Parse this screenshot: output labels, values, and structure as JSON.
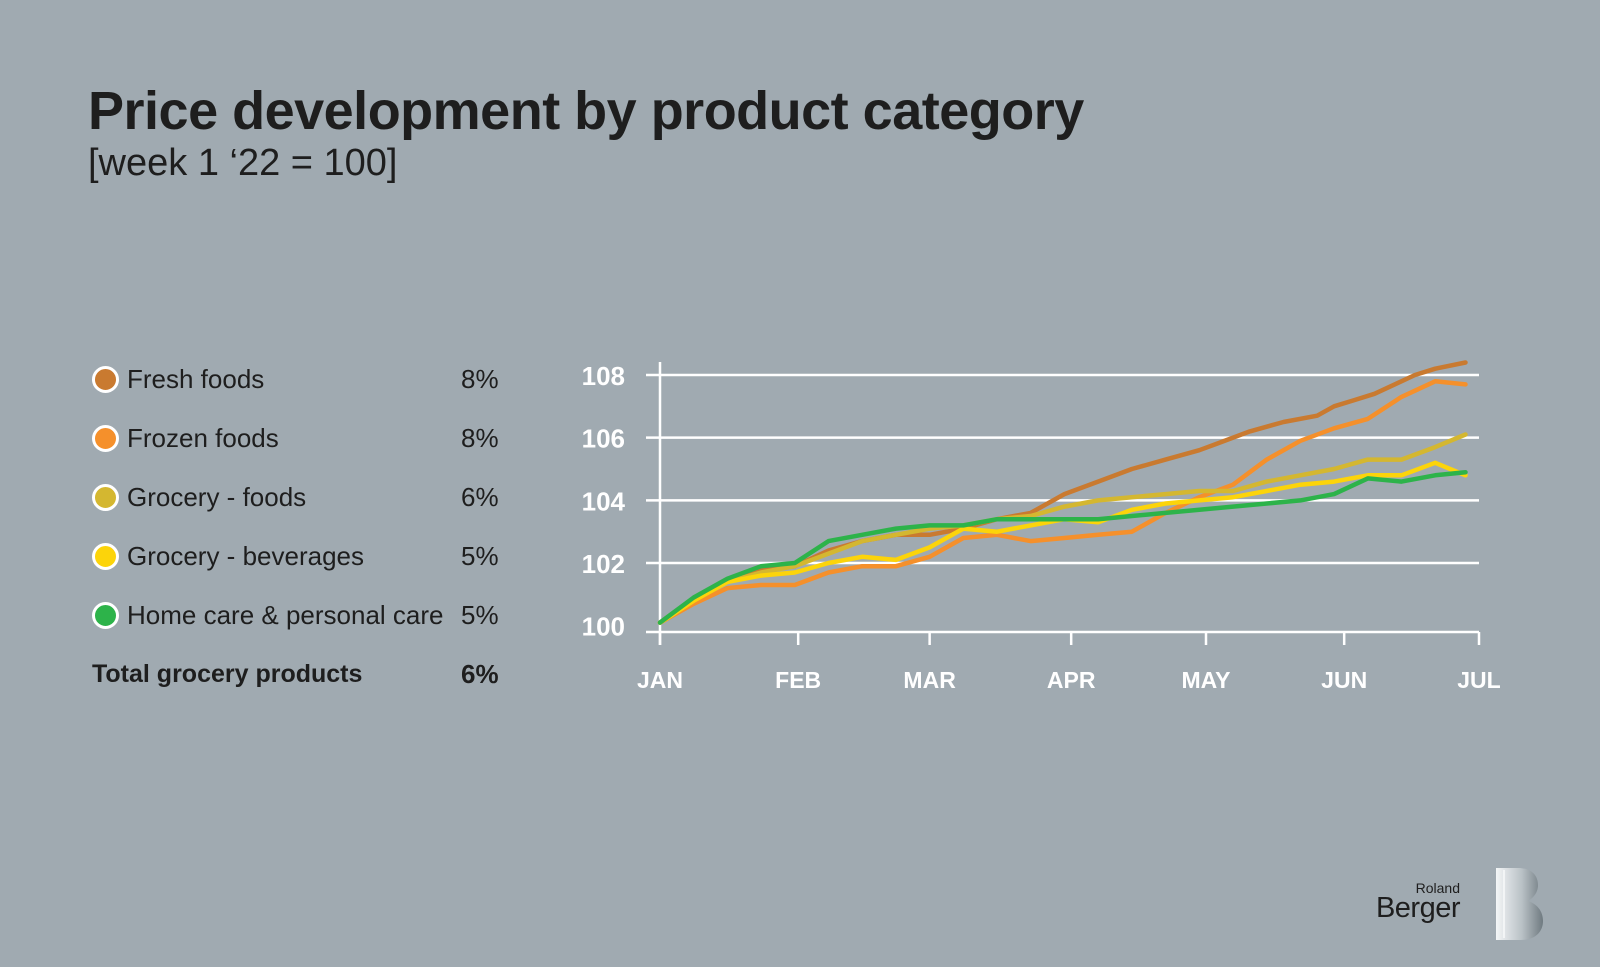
{
  "header": {
    "title": "Price development by product category",
    "subtitle": "[week 1 ‘22 = 100]"
  },
  "legend": {
    "items": [
      {
        "label": "Fresh foods",
        "pct": "8%",
        "color": "#c97a30"
      },
      {
        "label": "Frozen foods",
        "pct": "8%",
        "color": "#f5902b"
      },
      {
        "label": "Grocery - foods",
        "pct": "6%",
        "color": "#d4b730"
      },
      {
        "label": "Grocery - beverages",
        "pct": "5%",
        "color": "#fcd40a"
      },
      {
        "label": "Home care & personal care",
        "pct": "5%",
        "color": "#2db34a"
      }
    ],
    "total": {
      "label": "Total grocery products",
      "pct": "6%"
    }
  },
  "logo": {
    "small": "Roland",
    "big": "Berger"
  },
  "chart_data": {
    "type": "line",
    "title": "Price development by product category",
    "subtitle": "[week 1 ‘22 = 100]",
    "x_label": "",
    "y_label": "",
    "x_unit": "week of 2022",
    "x_ticks": [
      {
        "label": "JAN",
        "x": 0
      },
      {
        "label": "FEB",
        "x": 4.1
      },
      {
        "label": "MAR",
        "x": 8.0
      },
      {
        "label": "APR",
        "x": 12.2
      },
      {
        "label": "MAY",
        "x": 16.2
      },
      {
        "label": "JUN",
        "x": 20.3
      },
      {
        "label": "JUL",
        "x": 24.3
      }
    ],
    "xlim": [
      0,
      24.3
    ],
    "y_ticks": [
      100,
      102,
      104,
      106,
      108
    ],
    "ylim": [
      99.8,
      108
    ],
    "grid": "horizontal",
    "series": [
      {
        "name": "Fresh foods",
        "color": "#c97a30",
        "x": [
          0,
          0.9,
          2,
          3,
          4,
          5,
          6,
          7,
          8,
          9,
          10,
          11,
          12,
          13,
          14,
          15,
          16,
          16.5,
          17.5,
          18.5,
          19.5,
          20,
          20.6,
          21.2,
          21.8,
          22.4,
          23,
          23.9
        ],
        "y": [
          100.1,
          100.8,
          101.4,
          101.8,
          101.9,
          102.4,
          102.7,
          102.9,
          102.9,
          103.1,
          103.4,
          103.6,
          104.2,
          104.6,
          105.0,
          105.3,
          105.6,
          105.8,
          106.2,
          106.5,
          106.7,
          107.0,
          107.2,
          107.4,
          107.7,
          108.0,
          108.2,
          108.4
        ]
      },
      {
        "name": "Frozen foods",
        "color": "#f5902b",
        "x": [
          0,
          1,
          2,
          3,
          4,
          5,
          6,
          7,
          8,
          9,
          10,
          11,
          12,
          13,
          14,
          15,
          16,
          17,
          18,
          19,
          20,
          21,
          22,
          23,
          23.9
        ],
        "y": [
          100.1,
          100.7,
          101.2,
          101.3,
          101.3,
          101.7,
          101.9,
          101.9,
          102.2,
          102.8,
          102.9,
          102.7,
          102.8,
          102.9,
          103.0,
          103.6,
          104.1,
          104.5,
          105.3,
          105.9,
          106.3,
          106.6,
          107.3,
          107.8,
          107.7
        ]
      },
      {
        "name": "Grocery - foods",
        "color": "#d4b730",
        "x": [
          0,
          1,
          2,
          3,
          4,
          5,
          6,
          7,
          8,
          9,
          10,
          11,
          12,
          13,
          14,
          15,
          16,
          17,
          18,
          19,
          20,
          21,
          22,
          23,
          23.9
        ],
        "y": [
          100.1,
          100.8,
          101.4,
          101.7,
          101.9,
          102.3,
          102.7,
          102.9,
          103.1,
          103.2,
          103.4,
          103.5,
          103.8,
          104.0,
          104.1,
          104.2,
          104.3,
          104.3,
          104.6,
          104.8,
          105.0,
          105.3,
          105.3,
          105.7,
          106.1
        ]
      },
      {
        "name": "Grocery - beverages",
        "color": "#fcd40a",
        "x": [
          0,
          1,
          2,
          3,
          4,
          5,
          6,
          7,
          8,
          9,
          10,
          11,
          12,
          13,
          14,
          15,
          16,
          17,
          18,
          19,
          20,
          21,
          22,
          23,
          23.9
        ],
        "y": [
          100.1,
          100.8,
          101.4,
          101.6,
          101.7,
          102.0,
          102.2,
          102.1,
          102.5,
          103.1,
          103.0,
          103.2,
          103.4,
          103.3,
          103.7,
          103.9,
          104.0,
          104.1,
          104.3,
          104.5,
          104.6,
          104.8,
          104.8,
          105.2,
          104.8
        ]
      },
      {
        "name": "Home care & personal care",
        "color": "#2db34a",
        "x": [
          0,
          1,
          2,
          3,
          4,
          5,
          6,
          7,
          8,
          9,
          10,
          11,
          12,
          13,
          14,
          15,
          16,
          17,
          18,
          19,
          20,
          21,
          22,
          23,
          23.9
        ],
        "y": [
          100.1,
          100.9,
          101.5,
          101.9,
          102.0,
          102.7,
          102.9,
          103.1,
          103.2,
          103.2,
          103.4,
          103.4,
          103.4,
          103.4,
          103.5,
          103.6,
          103.7,
          103.8,
          103.9,
          104.0,
          104.2,
          104.7,
          104.6,
          104.8,
          104.9
        ]
      }
    ]
  }
}
